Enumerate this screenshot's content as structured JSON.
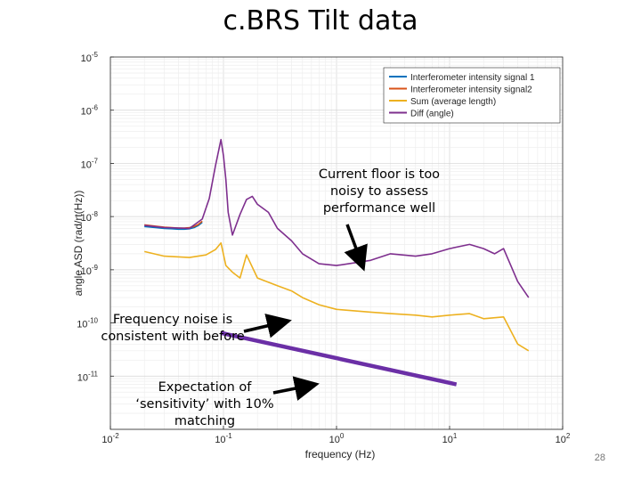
{
  "slide": {
    "title": "c.BRS Tilt data",
    "page_number": "28"
  },
  "annotations": {
    "floor": [
      "Current floor is too",
      "noisy to assess",
      "performance well"
    ],
    "freq_noise": [
      "Frequency noise is",
      "consistent with before"
    ],
    "expectation": [
      "Expectation of",
      "‘sensitivity’ with 10%",
      "matching"
    ]
  },
  "colors": {
    "signal1": "#0072BD",
    "signal2": "#D95319",
    "sum": "#EDB120",
    "diff": "#7E2F8E",
    "expectation_line": "#6B2FA6"
  },
  "chart_data": {
    "type": "line",
    "xscale": "log",
    "yscale": "log",
    "xlim": [
      0.01,
      100
    ],
    "ylim": [
      1e-12,
      1e-05
    ],
    "xlabel": "frequency (Hz)",
    "ylabel": "angle ASD (rad/rt(Hz))",
    "grid": true,
    "legend_position": "top-right",
    "x_ticks": [
      {
        "v": 0.01,
        "base": "10",
        "exp": "-2"
      },
      {
        "v": 0.1,
        "base": "10",
        "exp": "-1"
      },
      {
        "v": 1,
        "base": "10",
        "exp": "0"
      },
      {
        "v": 10,
        "base": "10",
        "exp": "1"
      },
      {
        "v": 100,
        "base": "10",
        "exp": "2"
      }
    ],
    "y_ticks": [
      {
        "v": 1e-05,
        "base": "10",
        "exp": "-5"
      },
      {
        "v": 1e-06,
        "base": "10",
        "exp": "-6"
      },
      {
        "v": 1e-07,
        "base": "10",
        "exp": "-7"
      },
      {
        "v": 1e-08,
        "base": "10",
        "exp": "-8"
      },
      {
        "v": 1e-09,
        "base": "10",
        "exp": "-9"
      },
      {
        "v": 1e-10,
        "base": "10",
        "exp": "-10"
      },
      {
        "v": 1e-11,
        "base": "10",
        "exp": "-11"
      }
    ],
    "series": [
      {
        "name": "Interferometer intensity signal 1",
        "color": "#0072BD",
        "x": [
          0.02,
          0.025,
          0.03,
          0.035,
          0.04,
          0.045,
          0.05,
          0.055,
          0.06,
          0.065
        ],
        "y": [
          6.5e-09,
          6.2e-09,
          6e-09,
          5.9e-09,
          5.8e-09,
          5.8e-09,
          5.9e-09,
          6.2e-09,
          6.8e-09,
          7.8e-09
        ]
      },
      {
        "name": "Interferometer intensity signal2",
        "color": "#D95319",
        "x": [
          0.02,
          0.025,
          0.03,
          0.035,
          0.04,
          0.045,
          0.05,
          0.055,
          0.06,
          0.065
        ],
        "y": [
          7e-09,
          6.6e-09,
          6.3e-09,
          6.2e-09,
          6.1e-09,
          6.1e-09,
          6.2e-09,
          6.5e-09,
          7.1e-09,
          8.2e-09
        ]
      },
      {
        "name": "Sum (average length)",
        "color": "#EDB120",
        "x": [
          0.02,
          0.03,
          0.05,
          0.07,
          0.085,
          0.095,
          0.105,
          0.12,
          0.14,
          0.16,
          0.2,
          0.3,
          0.4,
          0.5,
          0.7,
          1,
          2,
          3,
          5,
          7,
          10,
          15,
          20,
          30,
          40,
          50
        ],
        "y": [
          2.2e-09,
          1.8e-09,
          1.7e-09,
          1.9e-09,
          2.4e-09,
          3.2e-09,
          1.2e-09,
          9e-10,
          7e-10,
          1.9e-09,
          7e-10,
          5e-10,
          4e-10,
          3e-10,
          2.2e-10,
          1.8e-10,
          1.6e-10,
          1.5e-10,
          1.4e-10,
          1.3e-10,
          1.4e-10,
          1.5e-10,
          1.2e-10,
          1.3e-10,
          4e-11,
          3e-11
        ]
      },
      {
        "name": "Diff (angle)",
        "color": "#7E2F8E",
        "x": [
          0.02,
          0.03,
          0.05,
          0.065,
          0.075,
          0.085,
          0.095,
          0.1,
          0.105,
          0.11,
          0.12,
          0.14,
          0.16,
          0.18,
          0.2,
          0.25,
          0.3,
          0.4,
          0.5,
          0.7,
          1,
          2,
          3,
          5,
          7,
          10,
          15,
          20,
          25,
          30,
          40,
          50
        ],
        "y": [
          6.8e-09,
          6.2e-09,
          6e-09,
          9e-09,
          2.2e-08,
          9e-08,
          2.8e-07,
          1.4e-07,
          5e-08,
          1.2e-08,
          4.5e-09,
          1.1e-08,
          2.1e-08,
          2.4e-08,
          1.7e-08,
          1.2e-08,
          6e-09,
          3.5e-09,
          2e-09,
          1.3e-09,
          1.2e-09,
          1.5e-09,
          2e-09,
          1.8e-09,
          2e-09,
          2.5e-09,
          3e-09,
          2.5e-09,
          2e-09,
          2.5e-09,
          6e-10,
          3e-10
        ]
      }
    ],
    "expectation_line": {
      "x": [
        0.095,
        11.5
      ],
      "y": [
        6.5e-11,
        7e-12
      ]
    }
  }
}
